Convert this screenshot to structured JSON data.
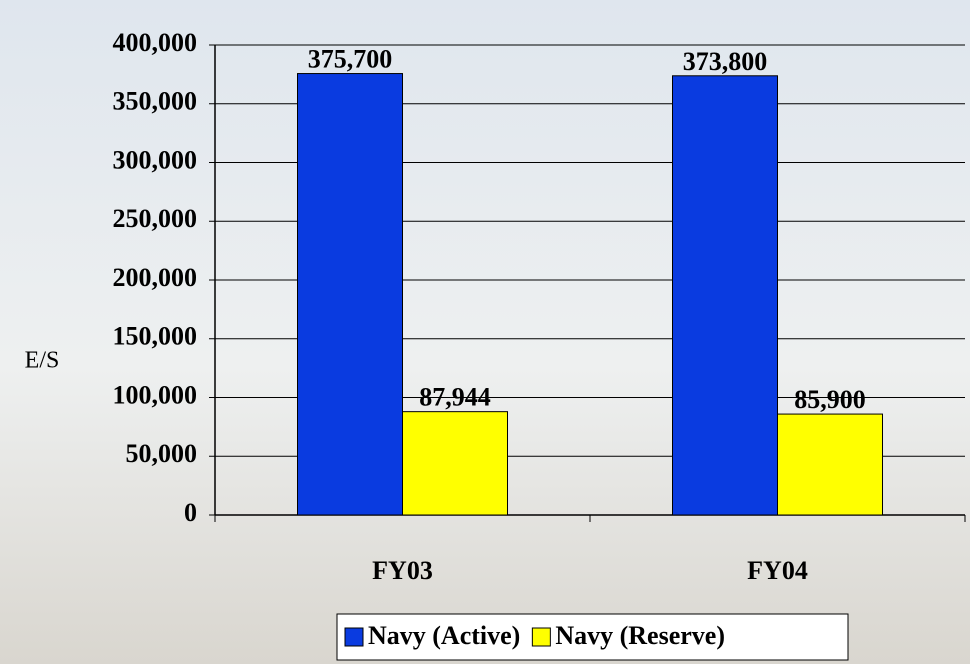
{
  "chart_data": {
    "type": "bar",
    "y_label": "E/S",
    "categories": [
      "FY03",
      "FY04"
    ],
    "series": [
      {
        "name": "Navy (Active)",
        "color": "#0a3be0",
        "values": [
          375700,
          373800
        ],
        "value_labels": [
          "375,700",
          "373,800"
        ]
      },
      {
        "name": "Navy (Reserve)",
        "color": "#ffff00",
        "values": [
          87944,
          85900
        ],
        "value_labels": [
          "87,944",
          "85,900"
        ]
      }
    ],
    "ylim": [
      0,
      400000
    ],
    "yticks": [
      0,
      {
        "value": 50000,
        "label": "50,000"
      },
      {
        "value": 100000,
        "label": "100,000"
      },
      {
        "value": 150000,
        "label": "150,000"
      },
      {
        "value": 200000,
        "label": "200,000"
      },
      {
        "value": 250000,
        "label": "250,000"
      },
      {
        "value": 300000,
        "label": "300,000"
      },
      {
        "value": 350000,
        "label": "350,000"
      },
      {
        "value": 400000,
        "label": "400,000"
      }
    ],
    "grid": true,
    "legend": "bottom"
  }
}
